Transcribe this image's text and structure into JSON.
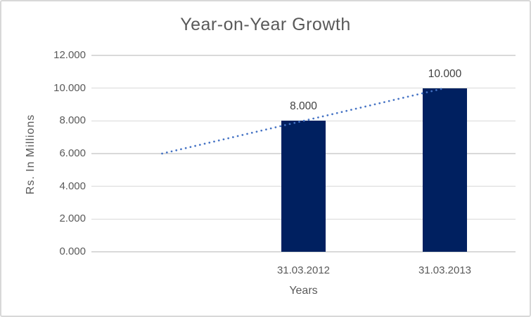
{
  "chart_data": {
    "type": "bar",
    "title": "Year-on-Year Growth",
    "xlabel": "Years",
    "ylabel": "Rs. In Millions",
    "categories": [
      "31.03.2012",
      "31.03.2013"
    ],
    "values": [
      8.0,
      10.0
    ],
    "data_labels": [
      "8.000",
      "10.000"
    ],
    "ylim": [
      0,
      12
    ],
    "ytick_values": [
      0,
      2,
      4,
      6,
      8,
      10,
      12
    ],
    "ytick_labels": [
      "0.000",
      "2.000",
      "4.000",
      "6.000",
      "8.000",
      "10.000",
      "12.000"
    ],
    "grid": true,
    "legend": "none",
    "trendline": {
      "type": "linear",
      "style": "dotted",
      "x_slots": 3,
      "values": [
        6.0,
        8.0,
        10.0
      ]
    },
    "colors": {
      "bar": "#002060",
      "trendline": "#4472C4",
      "gridline": "#D9D9D9",
      "title_text": "#595959",
      "axis_text": "#595959",
      "data_label_text": "#404040",
      "background": "#FFFFFF",
      "border": "#D8D8D8"
    }
  }
}
